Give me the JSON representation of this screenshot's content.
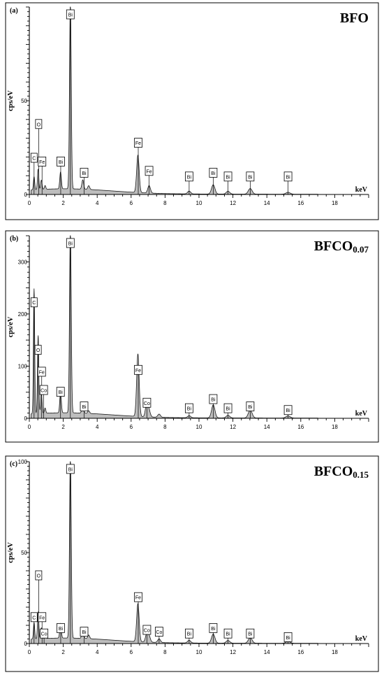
{
  "chart_data": [
    {
      "type": "line",
      "panel": "(a)",
      "title": "BFO",
      "title_sub": "",
      "ylabel": "cps/eV",
      "xlabel": "keV",
      "xlim": [
        0,
        20
      ],
      "ylim": [
        0,
        100
      ],
      "x_ticks": [
        "0",
        "2",
        "4",
        "6",
        "8",
        "10",
        "12",
        "14",
        "16",
        "18"
      ],
      "y_ticks": [
        {
          "value": 0,
          "label": "0"
        },
        {
          "value": 50,
          "label": "50"
        }
      ],
      "peaks": [
        [
          0.28,
          7
        ],
        [
          0.52,
          11
        ],
        [
          0.71,
          5
        ],
        [
          0.93,
          2
        ],
        [
          1.84,
          9
        ],
        [
          2.42,
          100
        ],
        [
          3.15,
          5
        ],
        [
          3.5,
          2
        ],
        [
          6.4,
          20
        ],
        [
          7.06,
          4
        ],
        [
          9.42,
          1.5
        ],
        [
          10.84,
          5
        ],
        [
          11.71,
          1.5
        ],
        [
          13.02,
          3
        ],
        [
          15.25,
          1
        ]
      ],
      "labels": [
        {
          "text": "C",
          "x": 0.28,
          "top": 0.22
        },
        {
          "text": "O",
          "x": 0.55,
          "top": 0.4
        },
        {
          "text": "Fe",
          "x": 0.75,
          "top": 0.2
        },
        {
          "text": "Bi",
          "x": 1.85,
          "top": 0.2
        },
        {
          "text": "Bi",
          "x": 2.42,
          "top": 0.985
        },
        {
          "text": "Bi",
          "x": 3.23,
          "top": 0.14
        },
        {
          "text": "Fe",
          "x": 6.42,
          "top": 0.3
        },
        {
          "text": "Fe",
          "x": 7.06,
          "top": 0.15
        },
        {
          "text": "Bi",
          "x": 9.42,
          "top": 0.12
        },
        {
          "text": "Bi",
          "x": 10.84,
          "top": 0.14
        },
        {
          "text": "Bi",
          "x": 11.71,
          "top": 0.12
        },
        {
          "text": "Bi",
          "x": 13.02,
          "top": 0.12
        },
        {
          "text": "Bi",
          "x": 15.25,
          "top": 0.12
        }
      ]
    },
    {
      "type": "line",
      "panel": "(b)",
      "title": "BFCO",
      "title_sub": "0.07",
      "ylabel": "cps/eV",
      "xlabel": "keV",
      "xlim": [
        0,
        20
      ],
      "ylim": [
        0,
        350
      ],
      "x_ticks": [
        "0",
        "2",
        "4",
        "6",
        "8",
        "10",
        "12",
        "14",
        "16",
        "18"
      ],
      "y_ticks": [
        {
          "value": 0,
          "label": "0"
        },
        {
          "value": 100,
          "label": "100"
        },
        {
          "value": 200,
          "label": "200"
        },
        {
          "value": 300,
          "label": "300"
        }
      ],
      "peaks": [
        [
          0.28,
          240
        ],
        [
          0.52,
          150
        ],
        [
          0.71,
          40
        ],
        [
          0.93,
          10
        ],
        [
          1.84,
          40
        ],
        [
          2.42,
          350
        ],
        [
          3.15,
          15
        ],
        [
          3.5,
          5
        ],
        [
          6.4,
          120
        ],
        [
          6.93,
          30
        ],
        [
          7.06,
          10
        ],
        [
          7.65,
          6
        ],
        [
          9.42,
          4
        ],
        [
          10.84,
          25
        ],
        [
          11.71,
          5
        ],
        [
          13.02,
          15
        ],
        [
          15.25,
          4
        ]
      ],
      "labels": [
        {
          "text": "C",
          "x": 0.28,
          "top": 0.66
        },
        {
          "text": "O",
          "x": 0.52,
          "top": 0.4
        },
        {
          "text": "Fe",
          "x": 0.73,
          "top": 0.28
        },
        {
          "text": "Co",
          "x": 0.85,
          "top": 0.18
        },
        {
          "text": "Bi",
          "x": 1.84,
          "top": 0.17
        },
        {
          "text": "Bi",
          "x": 2.42,
          "top": 0.985
        },
        {
          "text": "Bi",
          "x": 3.23,
          "top": 0.09
        },
        {
          "text": "Fe",
          "x": 6.42,
          "top": 0.29
        },
        {
          "text": "Co",
          "x": 6.93,
          "top": 0.11
        },
        {
          "text": "Bi",
          "x": 9.42,
          "top": 0.08
        },
        {
          "text": "Bi",
          "x": 10.84,
          "top": 0.13
        },
        {
          "text": "Bi",
          "x": 11.71,
          "top": 0.08
        },
        {
          "text": "Bi",
          "x": 13.02,
          "top": 0.09
        },
        {
          "text": "Bi",
          "x": 15.25,
          "top": 0.07
        }
      ]
    },
    {
      "type": "line",
      "panel": "(c)",
      "title": "BFCO",
      "title_sub": "0.15",
      "ylabel": "cps/eV",
      "xlabel": "keV",
      "xlim": [
        0,
        20
      ],
      "ylim": [
        0,
        100
      ],
      "x_ticks": [
        "0",
        "2",
        "4",
        "6",
        "8",
        "10",
        "12",
        "14",
        "16",
        "18"
      ],
      "y_ticks": [
        {
          "value": 0,
          "label": "0"
        },
        {
          "value": 50,
          "label": "50"
        },
        {
          "value": 100,
          "label": "100"
        }
      ],
      "peaks": [
        [
          0.28,
          9
        ],
        [
          0.52,
          15
        ],
        [
          0.71,
          6
        ],
        [
          0.93,
          3
        ],
        [
          1.84,
          8
        ],
        [
          2.42,
          100
        ],
        [
          3.15,
          5
        ],
        [
          3.5,
          2
        ],
        [
          6.4,
          21
        ],
        [
          6.93,
          5
        ],
        [
          7.06,
          3
        ],
        [
          7.65,
          2
        ],
        [
          9.42,
          1.5
        ],
        [
          10.84,
          5
        ],
        [
          11.71,
          1.5
        ],
        [
          13.02,
          3
        ],
        [
          15.25,
          1
        ]
      ],
      "labels": [
        {
          "text": "C",
          "x": 0.28,
          "top": 0.17
        },
        {
          "text": "O",
          "x": 0.55,
          "top": 0.4
        },
        {
          "text": "Fe",
          "x": 0.75,
          "top": 0.17
        },
        {
          "text": "Co",
          "x": 0.87,
          "top": 0.08
        },
        {
          "text": "Bi",
          "x": 1.85,
          "top": 0.11
        },
        {
          "text": "Bi",
          "x": 2.42,
          "top": 0.985
        },
        {
          "text": "Bi",
          "x": 3.23,
          "top": 0.09
        },
        {
          "text": "Fe",
          "x": 6.42,
          "top": 0.28
        },
        {
          "text": "Co",
          "x": 6.93,
          "top": 0.1
        },
        {
          "text": "Co",
          "x": 7.65,
          "top": 0.09
        },
        {
          "text": "Bi",
          "x": 9.42,
          "top": 0.08
        },
        {
          "text": "Bi",
          "x": 10.84,
          "top": 0.11
        },
        {
          "text": "Bi",
          "x": 11.71,
          "top": 0.08
        },
        {
          "text": "Bi",
          "x": 13.02,
          "top": 0.08
        },
        {
          "text": "Bi",
          "x": 15.25,
          "top": 0.06
        }
      ]
    }
  ]
}
